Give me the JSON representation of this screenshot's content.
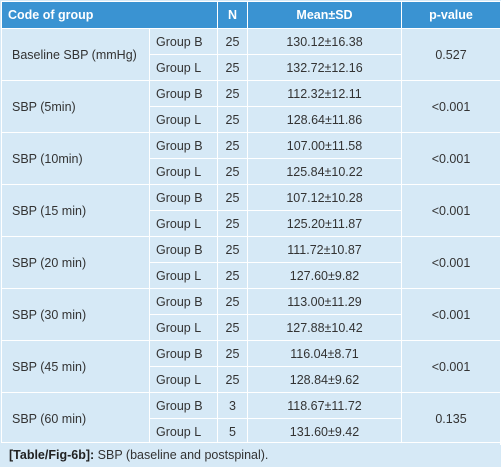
{
  "table": {
    "headers": {
      "code_of_group": "Code of group",
      "n": "N",
      "mean_sd": "Mean±SD",
      "p_value": "p-value"
    },
    "rows": [
      {
        "parameter": "Baseline SBP (mmHg)",
        "p_value": "0.527",
        "groups": [
          {
            "group": "Group B",
            "n": "25",
            "mean_sd": "130.12±16.38"
          },
          {
            "group": "Group L",
            "n": "25",
            "mean_sd": "132.72±12.16"
          }
        ]
      },
      {
        "parameter": "SBP (5min)",
        "p_value": "<0.001",
        "groups": [
          {
            "group": "Group B",
            "n": "25",
            "mean_sd": "112.32±12.11"
          },
          {
            "group": "Group L",
            "n": "25",
            "mean_sd": "128.64±11.86"
          }
        ]
      },
      {
        "parameter": "SBP (10min)",
        "p_value": "<0.001",
        "groups": [
          {
            "group": "Group B",
            "n": "25",
            "mean_sd": "107.00±11.58"
          },
          {
            "group": "Group L",
            "n": "25",
            "mean_sd": "125.84±10.22"
          }
        ]
      },
      {
        "parameter": "SBP (15 min)",
        "p_value": "<0.001",
        "groups": [
          {
            "group": "Group B",
            "n": "25",
            "mean_sd": "107.12±10.28"
          },
          {
            "group": "Group L",
            "n": "25",
            "mean_sd": "125.20±11.87"
          }
        ]
      },
      {
        "parameter": "SBP (20 min)",
        "p_value": "<0.001",
        "groups": [
          {
            "group": "Group B",
            "n": "25",
            "mean_sd": "111.72±10.87"
          },
          {
            "group": "Group L",
            "n": "25",
            "mean_sd": "127.60±9.82"
          }
        ]
      },
      {
        "parameter": "SBP (30 min)",
        "p_value": "<0.001",
        "groups": [
          {
            "group": "Group B",
            "n": "25",
            "mean_sd": "113.00±11.29"
          },
          {
            "group": "Group L",
            "n": "25",
            "mean_sd": "127.88±10.42"
          }
        ]
      },
      {
        "parameter": "SBP (45 min)",
        "p_value": "<0.001",
        "groups": [
          {
            "group": "Group B",
            "n": "25",
            "mean_sd": "116.04±8.71"
          },
          {
            "group": "Group L",
            "n": "25",
            "mean_sd": "128.84±9.62"
          }
        ]
      },
      {
        "parameter": "SBP (60 min)",
        "p_value": "0.135",
        "groups": [
          {
            "group": "Group B",
            "n": "3",
            "mean_sd": "118.67±11.72"
          },
          {
            "group": "Group L",
            "n": "5",
            "mean_sd": "131.60±9.42"
          }
        ]
      }
    ]
  },
  "caption": {
    "tag": "[Table/Fig-6b]:",
    "text": "SBP (baseline and postspinal)."
  },
  "colors": {
    "header_bg": "#3a93d2",
    "cell_bg": "#d6e9f6",
    "grid_line": "#ffffff"
  }
}
